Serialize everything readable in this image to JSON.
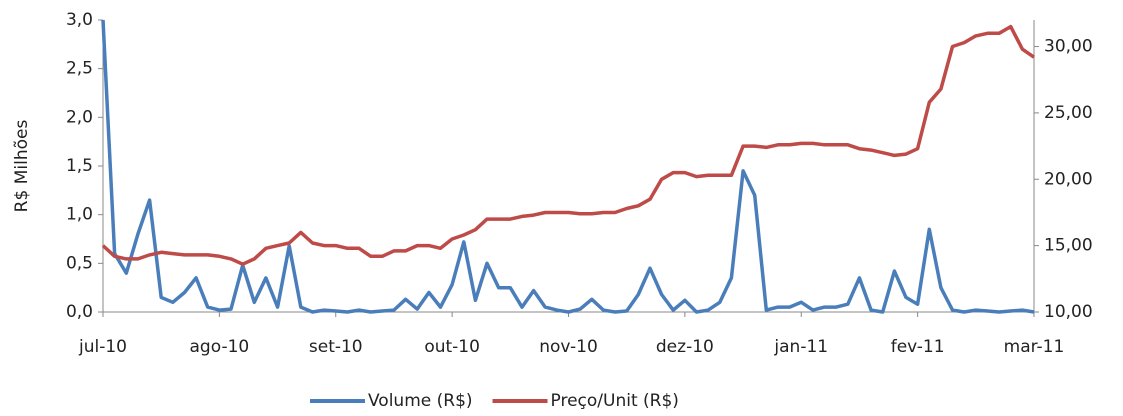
{
  "chart_data": {
    "type": "line",
    "y_label": "R$ Milhões",
    "categories": [
      "jul-10",
      null,
      null,
      null,
      null,
      null,
      null,
      null,
      null,
      null,
      "ago-10",
      null,
      null,
      null,
      null,
      null,
      null,
      null,
      null,
      null,
      "set-10",
      null,
      null,
      null,
      null,
      null,
      null,
      null,
      null,
      null,
      "out-10",
      null,
      null,
      null,
      null,
      null,
      null,
      null,
      null,
      null,
      "nov-10",
      null,
      null,
      null,
      null,
      null,
      null,
      null,
      null,
      null,
      "dez-10",
      null,
      null,
      null,
      null,
      null,
      null,
      null,
      null,
      null,
      "jan-11",
      null,
      null,
      null,
      null,
      null,
      null,
      null,
      null,
      null,
      "fev-11",
      null,
      null,
      null,
      null,
      null,
      null,
      null,
      null,
      null,
      "mar-11"
    ],
    "series": [
      {
        "name": "Volume (R$)",
        "color": "#4a7ebb",
        "axis": "y",
        "values": [
          3.0,
          0.6,
          0.4,
          0.8,
          1.15,
          0.15,
          0.1,
          0.2,
          0.35,
          0.05,
          0.02,
          0.03,
          0.48,
          0.1,
          0.35,
          0.05,
          0.68,
          0.05,
          0.0,
          0.02,
          0.01,
          0.0,
          0.02,
          0.0,
          0.01,
          0.02,
          0.13,
          0.03,
          0.2,
          0.05,
          0.28,
          0.72,
          0.12,
          0.5,
          0.25,
          0.25,
          0.05,
          0.22,
          0.05,
          0.02,
          0.0,
          0.03,
          0.13,
          0.02,
          0.0,
          0.01,
          0.18,
          0.45,
          0.18,
          0.02,
          0.12,
          0.0,
          0.02,
          0.1,
          0.35,
          1.45,
          1.2,
          0.02,
          0.05,
          0.05,
          0.1,
          0.02,
          0.05,
          0.05,
          0.08,
          0.35,
          0.02,
          0.0,
          0.42,
          0.15,
          0.08,
          0.85,
          0.25,
          0.02,
          0.0,
          0.02,
          0.01,
          0.0,
          0.01,
          0.02,
          0.0
        ]
      },
      {
        "name": "Preço/Unit (R$)",
        "color": "#be4b48",
        "axis": "y2",
        "values": [
          15,
          14.2,
          14,
          14,
          14.3,
          14.5,
          14.4,
          14.3,
          14.3,
          14.3,
          14.2,
          14,
          13.6,
          14,
          14.8,
          15,
          15.2,
          16,
          15.2,
          15,
          15,
          14.8,
          14.8,
          14.2,
          14.2,
          14.6,
          14.6,
          15,
          15,
          14.8,
          15.5,
          15.8,
          16.2,
          17,
          17,
          17,
          17.2,
          17.3,
          17.5,
          17.5,
          17.5,
          17.4,
          17.4,
          17.5,
          17.5,
          17.8,
          18,
          18.5,
          20,
          20.5,
          20.5,
          20.2,
          20.3,
          20.3,
          20.3,
          22.5,
          22.5,
          22.4,
          22.6,
          22.6,
          22.7,
          22.7,
          22.6,
          22.6,
          22.6,
          22.3,
          22.2,
          22,
          21.8,
          21.9,
          22.3,
          25.8,
          26.8,
          30,
          30.3,
          30.8,
          31,
          31,
          31.5,
          29.8,
          29.2
        ]
      }
    ],
    "ylim": [
      0,
      3
    ],
    "yticks": [
      {
        "value": 0,
        "label": "0,0"
      },
      {
        "value": 0.5,
        "label": "0,5"
      },
      {
        "value": 1,
        "label": "1,0"
      },
      {
        "value": 1.5,
        "label": "1,5"
      },
      {
        "value": 2,
        "label": "2,0"
      },
      {
        "value": 2.5,
        "label": "2,5"
      },
      {
        "value": 3,
        "label": "3,0"
      }
    ],
    "y2lim": [
      10,
      32
    ],
    "y2ticks": [
      {
        "value": 10,
        "label": "10,00"
      },
      {
        "value": 15,
        "label": "15,00"
      },
      {
        "value": 20,
        "label": "20,00"
      },
      {
        "value": 25,
        "label": "25,00"
      },
      {
        "value": 30,
        "label": "30,00"
      }
    ],
    "legend": "bottom"
  }
}
